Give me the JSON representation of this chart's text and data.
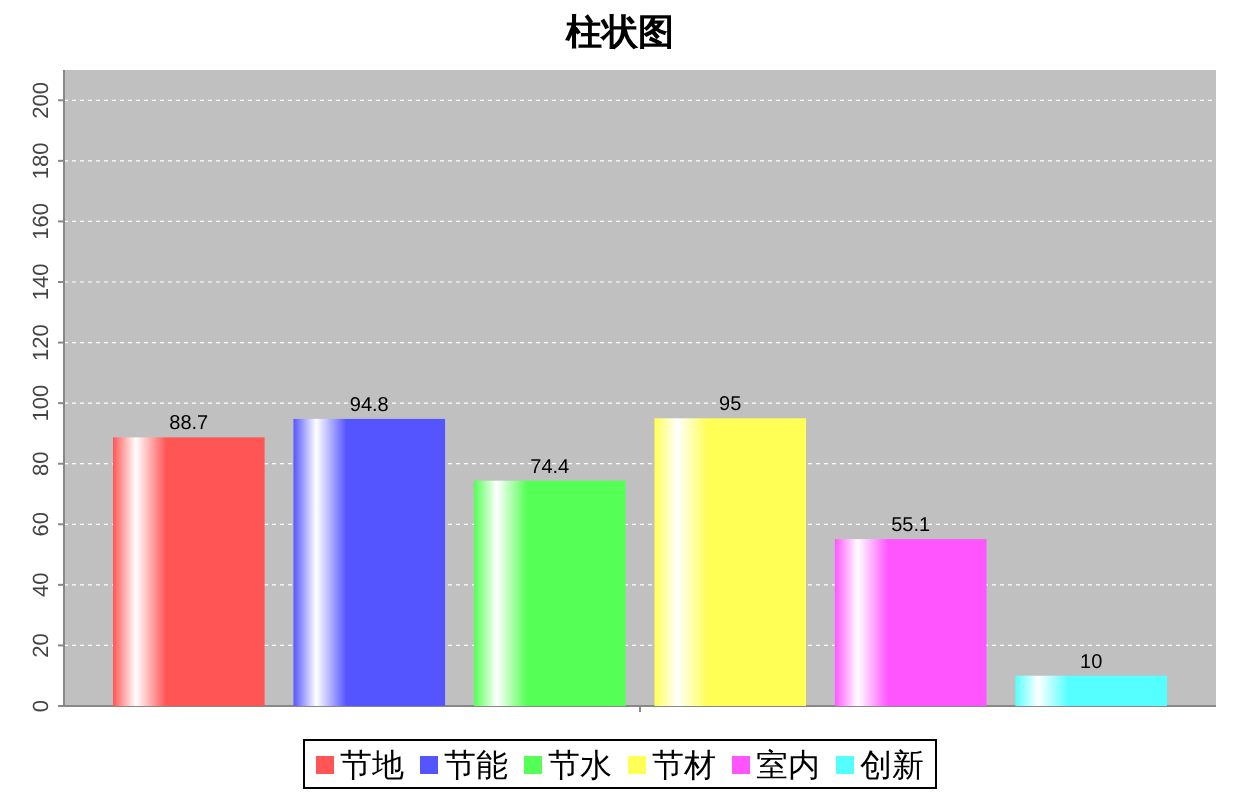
{
  "chart_data": {
    "type": "bar",
    "title": "柱状图",
    "categories": [
      null
    ],
    "series": [
      {
        "name": "节地",
        "color": "#ff5555",
        "values": [
          88.7
        ]
      },
      {
        "name": "节能",
        "color": "#5555ff",
        "values": [
          94.8
        ]
      },
      {
        "name": "节水",
        "color": "#55ff55",
        "values": [
          74.4
        ]
      },
      {
        "name": "节材",
        "color": "#ffff55",
        "values": [
          95
        ]
      },
      {
        "name": "室内",
        "color": "#ff55ff",
        "values": [
          55.1
        ]
      },
      {
        "name": "创新",
        "color": "#55ffff",
        "values": [
          10
        ]
      }
    ],
    "ylim": [
      0,
      210
    ],
    "yticks": [
      0,
      20,
      40,
      60,
      80,
      100,
      120,
      140,
      160,
      180,
      200
    ],
    "grid": "y",
    "legend": "bottom",
    "data_labels": true
  }
}
